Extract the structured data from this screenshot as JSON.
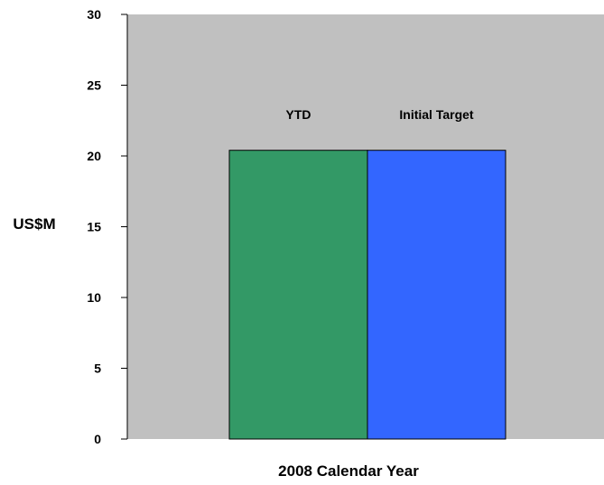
{
  "chart_data": {
    "type": "bar",
    "title": "",
    "xlabel": "2008 Calendar Year",
    "ylabel": "US$M",
    "ylim": [
      0,
      30
    ],
    "yticks": [
      0,
      5,
      10,
      15,
      20,
      25,
      30
    ],
    "grid": false,
    "legend": "none",
    "categories": [
      "YTD",
      "Initial Target"
    ],
    "values": [
      20.4,
      20.4
    ],
    "colors": [
      "#339966",
      "#3366FF"
    ],
    "plot_background": "#C0C0C0"
  }
}
